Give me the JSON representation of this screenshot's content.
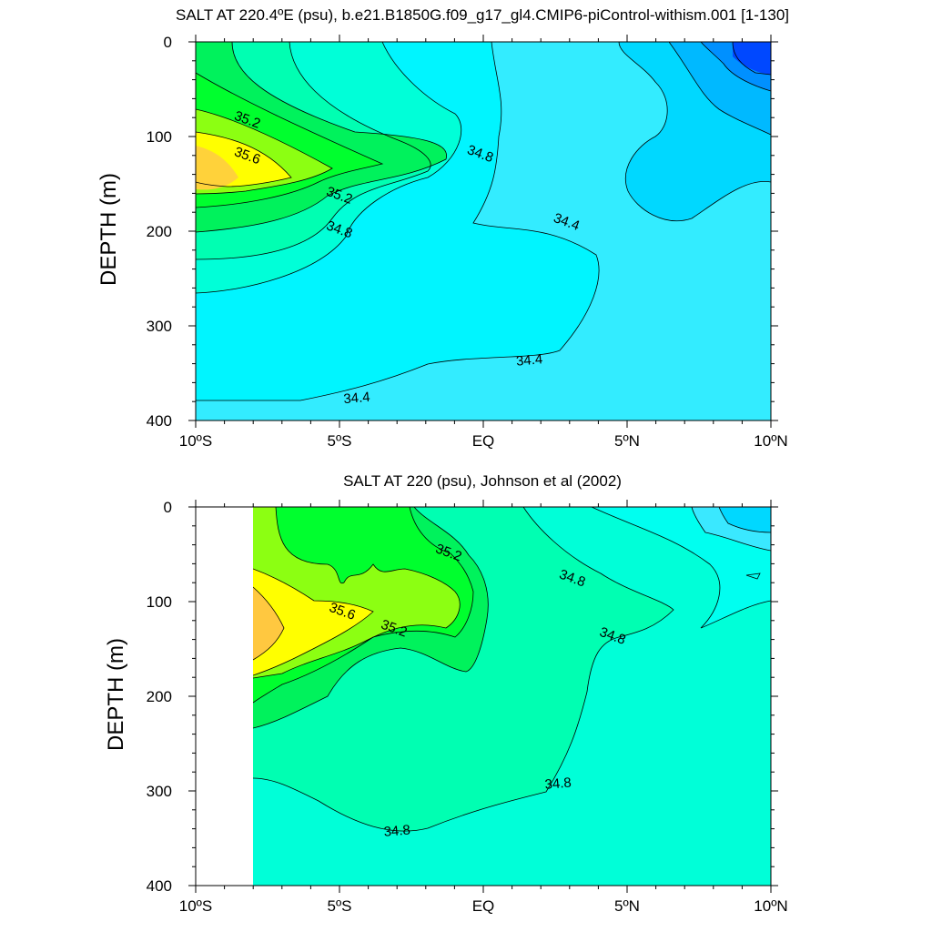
{
  "chart_data": [
    {
      "type": "contour",
      "title": "SALT AT 220.4ºE (psu), b.e21.B1850G.f09_g17_gl4.CMIP6-piControl-withism.001 [1-130]",
      "ylabel": "DEPTH (m)",
      "xlabel": "",
      "xlim": [
        -10,
        10
      ],
      "ylim": [
        400,
        0
      ],
      "x_ticks": [
        {
          "value": -10,
          "label": "10ºS"
        },
        {
          "value": -5,
          "label": "5ºS"
        },
        {
          "value": 0,
          "label": "EQ"
        },
        {
          "value": 5,
          "label": "5ºN"
        },
        {
          "value": 10,
          "label": "10ºN"
        }
      ],
      "y_ticks": [
        {
          "value": 0,
          "label": "0"
        },
        {
          "value": 100,
          "label": "100"
        },
        {
          "value": 200,
          "label": "200"
        },
        {
          "value": 300,
          "label": "300"
        },
        {
          "value": 400,
          "label": "400"
        }
      ],
      "contour_levels": [
        34.0,
        34.2,
        34.4,
        34.6,
        34.8,
        35.0,
        35.2,
        35.4,
        35.6,
        35.8
      ],
      "contour_labels": [
        {
          "text": "35.2",
          "x": -8.2,
          "y": 82
        },
        {
          "text": "35.6",
          "x": -8.2,
          "y": 120
        },
        {
          "text": "35.2",
          "x": -5.0,
          "y": 162
        },
        {
          "text": "34.8",
          "x": -5.0,
          "y": 198
        },
        {
          "text": "34.8",
          "x": -0.1,
          "y": 118
        },
        {
          "text": "34.4",
          "x": 2.9,
          "y": 190
        },
        {
          "text": "34.4",
          "x": 1.6,
          "y": 336
        },
        {
          "text": "34.4",
          "x": -4.4,
          "y": 376
        }
      ]
    },
    {
      "type": "contour",
      "title": "SALT AT 220 (psu), Johnson et al (2002)",
      "ylabel": "DEPTH (m)",
      "xlabel": "",
      "xlim": [
        -10,
        10
      ],
      "ylim": [
        400,
        0
      ],
      "x_ticks": [
        {
          "value": -10,
          "label": "10ºS"
        },
        {
          "value": -5,
          "label": "5ºS"
        },
        {
          "value": 0,
          "label": "EQ"
        },
        {
          "value": 5,
          "label": "5ºN"
        },
        {
          "value": 10,
          "label": "10ºN"
        }
      ],
      "y_ticks": [
        {
          "value": 0,
          "label": "0"
        },
        {
          "value": 100,
          "label": "100"
        },
        {
          "value": 200,
          "label": "200"
        },
        {
          "value": 300,
          "label": "300"
        },
        {
          "value": 400,
          "label": "400"
        }
      ],
      "data_x_range": [
        -8,
        10
      ],
      "contour_levels": [
        34.0,
        34.2,
        34.4,
        34.6,
        34.8,
        35.0,
        35.2,
        35.4,
        35.6,
        35.8
      ],
      "contour_labels": [
        {
          "text": "35.2",
          "x": -1.2,
          "y": 48
        },
        {
          "text": "35.6",
          "x": -4.9,
          "y": 110
        },
        {
          "text": "35.2",
          "x": -3.1,
          "y": 128
        },
        {
          "text": "34.8",
          "x": 3.1,
          "y": 75
        },
        {
          "text": "34.8",
          "x": 4.5,
          "y": 136
        },
        {
          "text": "34.8",
          "x": 2.6,
          "y": 292
        },
        {
          "text": "34.8",
          "x": -3.0,
          "y": 342
        }
      ]
    }
  ],
  "colors": {
    "s_34_0": "#0048ff",
    "s_34_2": "#0090ff",
    "s_34_4": "#00b9ff",
    "s_34_6": "#00d8ff",
    "s_34_8": "#00f2ff",
    "s_35_0": "#3aeeff",
    "s_35_2": "#00ffd9",
    "s_35_4": "#00ffb0",
    "s_35_6": "#00f25c",
    "s_35_8": "#00ff2e",
    "s_36_0": "#8cff12",
    "s_36_2": "#ffff00",
    "s_36_4": "#ffc940"
  }
}
